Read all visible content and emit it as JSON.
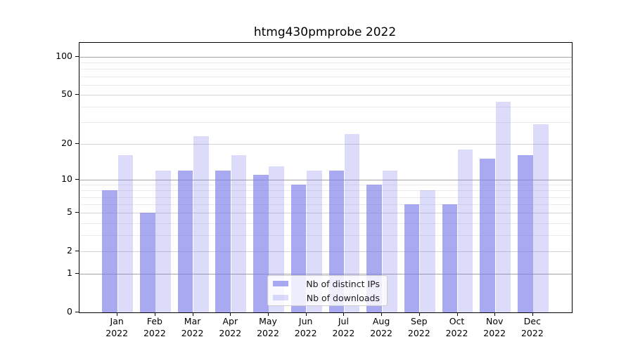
{
  "title": "htmg430pmprobe 2022",
  "chart_data": {
    "type": "bar",
    "title": "htmg430pmprobe 2022",
    "y_scale": "log10(1+y)",
    "categories": [
      "Jan 2022",
      "Feb 2022",
      "Mar 2022",
      "Apr 2022",
      "May 2022",
      "Jun 2022",
      "Jul 2022",
      "Aug 2022",
      "Sep 2022",
      "Oct 2022",
      "Nov 2022",
      "Dec 2022"
    ],
    "series": [
      {
        "name": "Nb of distinct IPs",
        "color": "rgba(124,124,235,0.66)",
        "values": [
          8,
          5,
          12,
          12,
          11,
          9,
          12,
          9,
          6,
          6,
          15,
          16
        ]
      },
      {
        "name": "Nb of downloads",
        "color": "rgba(124,124,235,0.27)",
        "values": [
          16,
          12,
          23,
          16,
          13,
          12,
          24,
          12,
          8,
          18,
          44,
          29
        ]
      }
    ],
    "ylim": [
      0,
      130
    ],
    "ytick_values": [
      0,
      1,
      2,
      5,
      10,
      20,
      50,
      100
    ],
    "ytick_labels": [
      "0",
      "1",
      "2",
      "5",
      "10",
      "20",
      "50",
      "100"
    ],
    "major_gridline_values": [
      1,
      10,
      100
    ],
    "minor_gridline_values": [
      3,
      4,
      6,
      7,
      8,
      9,
      30,
      40,
      60,
      70,
      80,
      90
    ],
    "grid": "on",
    "legend_position": "lower center",
    "colors": {
      "bar_distinct_ips": "rgba(124,124,235,0.66)",
      "bar_downloads": "rgba(124,124,235,0.27)",
      "grid_major": "#a3a3a3",
      "grid_mid": "#d4d4d4",
      "grid_minor": "#ebebeb",
      "spine": "#000000"
    }
  }
}
